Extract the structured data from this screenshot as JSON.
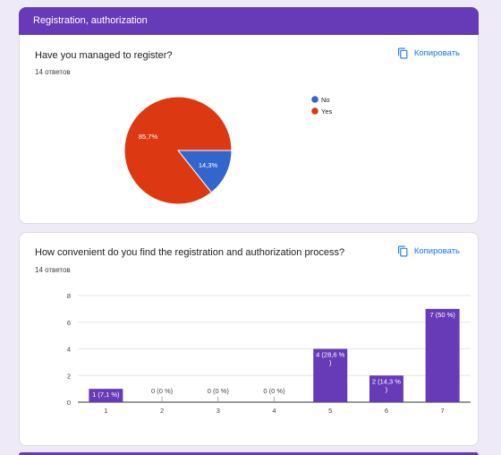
{
  "section": {
    "title": "Registration, authorization"
  },
  "copy_label": "Копировать",
  "questions": [
    {
      "title": "Have you managed to register?",
      "responses": "14 ответов",
      "legend": [
        {
          "label": "No",
          "color": "#3366cc"
        },
        {
          "label": "Yes",
          "color": "#dc3912"
        }
      ]
    },
    {
      "title": "How convenient do you find the registration and authorization process?",
      "responses": "14 ответов"
    }
  ],
  "chart_data": [
    {
      "type": "pie",
      "labels": [
        "No",
        "Yes"
      ],
      "values": [
        14.3,
        85.7
      ],
      "value_labels": [
        "14,3%",
        "85,7%"
      ],
      "colors": [
        "#3366cc",
        "#dc3912"
      ],
      "legend": "right"
    },
    {
      "type": "bar",
      "categories": [
        "1",
        "2",
        "3",
        "4",
        "5",
        "6",
        "7"
      ],
      "values": [
        1,
        0,
        0,
        0,
        4,
        2,
        7
      ],
      "data_labels": [
        [
          "1 (7,1 %)"
        ],
        [
          "0 (0 %)"
        ],
        [
          "0 (0 %)"
        ],
        [
          "0 (0 %)"
        ],
        [
          "4 (28,6 %",
          ")"
        ],
        [
          "2 (14,3 %",
          ")"
        ],
        [
          "7 (50 %)"
        ]
      ],
      "y_ticks": [
        "0",
        "2",
        "4",
        "6",
        "8"
      ],
      "ylim": [
        0,
        8
      ],
      "color": "#673ab7",
      "grid": true
    }
  ]
}
